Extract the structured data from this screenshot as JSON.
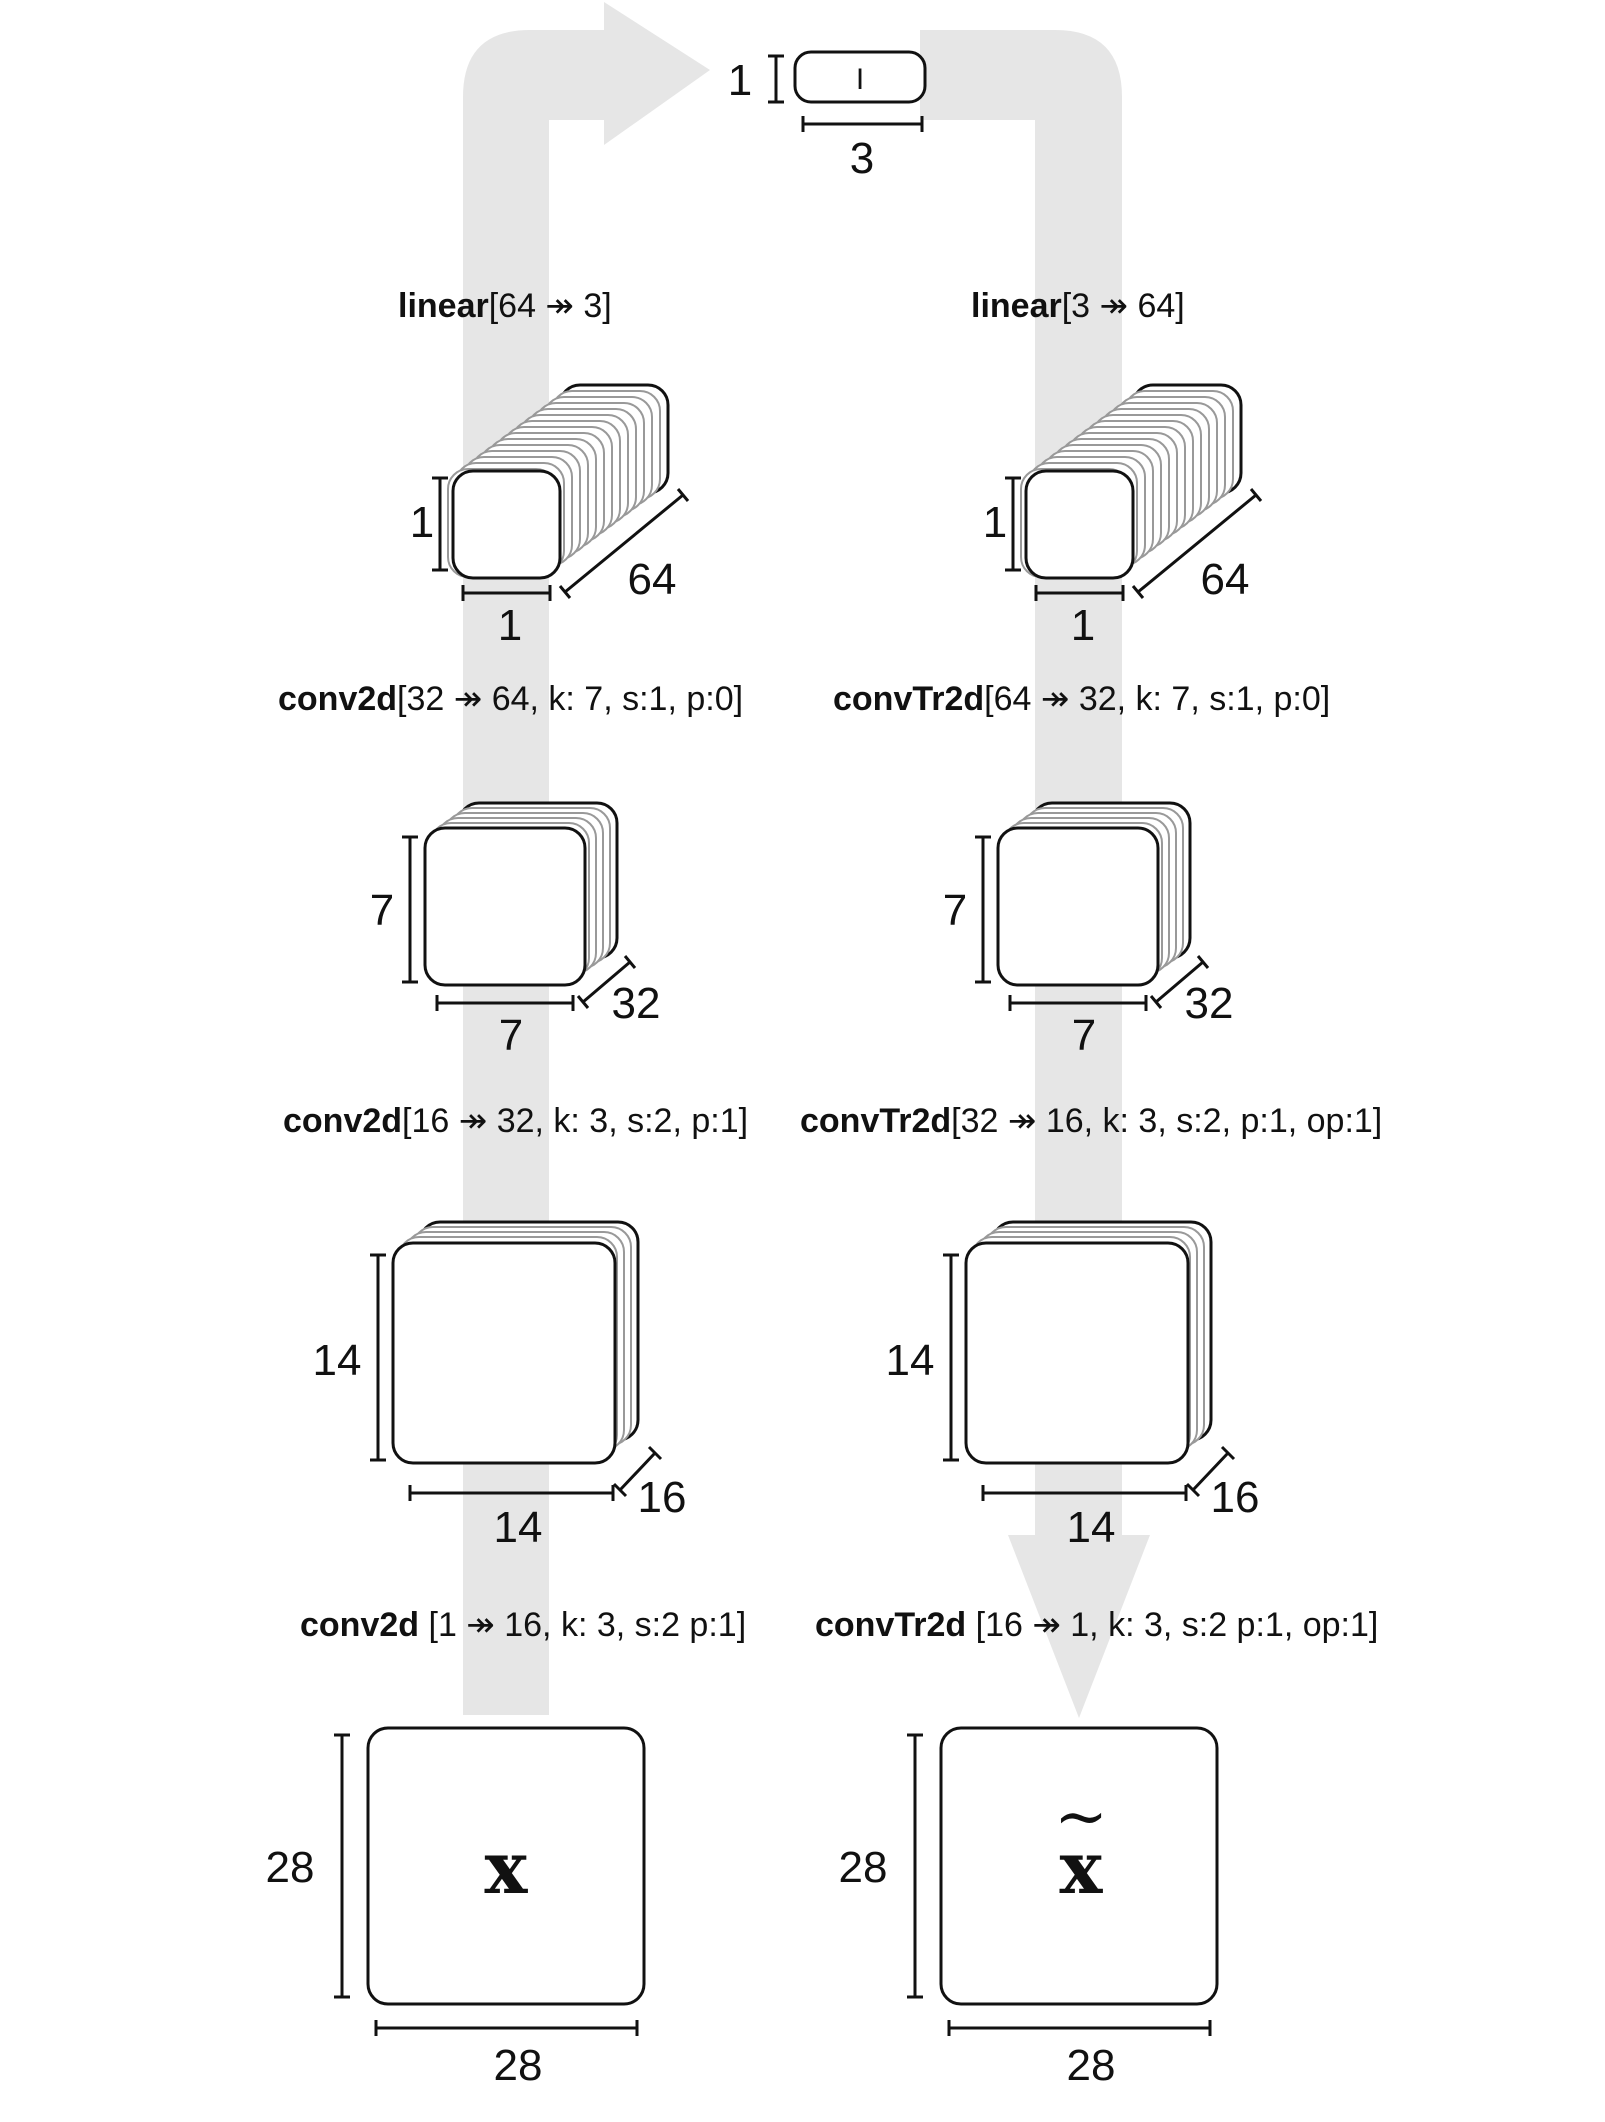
{
  "colors": {
    "flow_arrow": "#e6e6e6",
    "stroke": "#111111",
    "card_stroke": "#999999",
    "background": "#ffffff"
  },
  "latent": {
    "height": "1",
    "width": "3",
    "glyph": "I"
  },
  "encoder": {
    "input": {
      "symbol": "x",
      "height": "28",
      "width": "28"
    },
    "layers": [
      {
        "name": "conv2d",
        "args": " [1 ↠ 16, k: 3, s:2 p:1]"
      },
      {
        "name": "conv2d",
        "args": "[16 ↠ 32, k: 3, s:2, p:1]"
      },
      {
        "name": "conv2d",
        "args": "[32 ↠ 64, k: 7, s:1, p:0]"
      },
      {
        "name": "linear",
        "args": "[64 ↠ 3]"
      }
    ],
    "blocks": [
      {
        "height": "14",
        "width": "14",
        "depth": "16"
      },
      {
        "height": "7",
        "width": "7",
        "depth": "32"
      },
      {
        "height": "1",
        "width": "1",
        "depth": "64"
      }
    ]
  },
  "decoder": {
    "output": {
      "symbol": "x",
      "accent": "~",
      "height": "28",
      "width": "28"
    },
    "layers": [
      {
        "name": "convTr2d",
        "args": " [16 ↠ 1, k: 3, s:2 p:1, op:1]"
      },
      {
        "name": "convTr2d",
        "args": "[32 ↠ 16, k: 3, s:2, p:1, op:1]"
      },
      {
        "name": "convTr2d",
        "args": "[64 ↠ 32, k: 7, s:1, p:0]"
      },
      {
        "name": "linear",
        "args": "[3 ↠ 64]"
      }
    ],
    "blocks": [
      {
        "height": "14",
        "width": "14",
        "depth": "16"
      },
      {
        "height": "7",
        "width": "7",
        "depth": "32"
      },
      {
        "height": "1",
        "width": "1",
        "depth": "64"
      }
    ]
  }
}
